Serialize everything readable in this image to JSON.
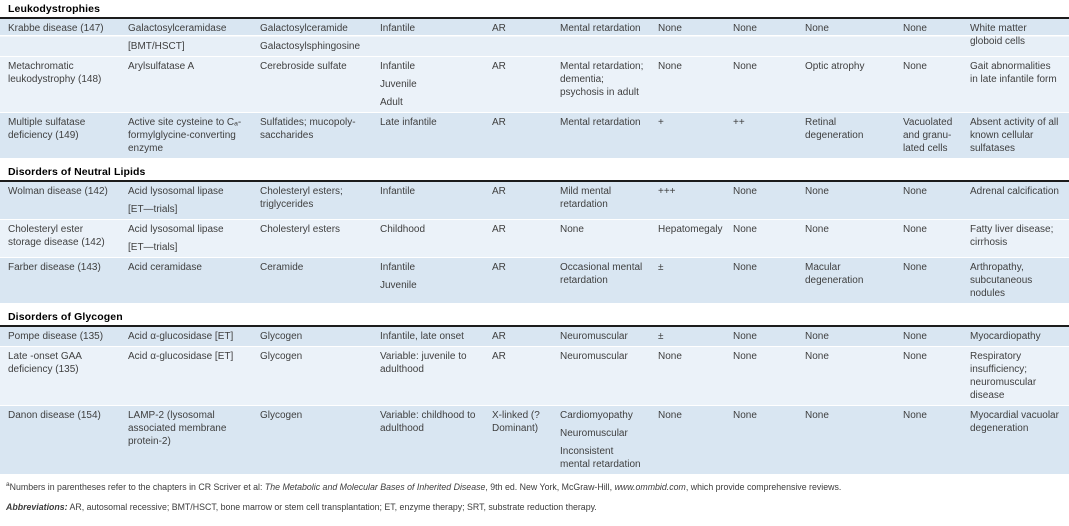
{
  "colors": {
    "row_dark": "#d9e6f2",
    "row_light": "#ebf2f9",
    "row_split_lower": "#e7eff7",
    "section_rule": "#1c1c1c",
    "body_text": "#3f3f3f",
    "header_text": "#000000"
  },
  "table": {
    "sections": [
      {
        "title": "Leukodystrophies",
        "rows": [
          {
            "cells": [
              [
                "Krabbe disease (147)"
              ],
              [
                "Galactosylceramidase",
                "[BMT/HSCT]"
              ],
              [
                "Galactosylceramide",
                "Galactosylsphingosine"
              ],
              [
                "Infantile"
              ],
              [
                "AR"
              ],
              [
                "Mental retardation"
              ],
              [
                "None"
              ],
              [
                "None"
              ],
              [
                "None"
              ],
              [
                "None"
              ],
              [
                "White matter globoid cells"
              ]
            ]
          },
          {
            "cells": [
              [
                "Metachromatic leukodystrophy (148)"
              ],
              [
                "Arylsulfatase A"
              ],
              [
                "Cerebroside sulfate"
              ],
              [
                "Infantile",
                "Juvenile",
                "Adult"
              ],
              [
                "AR"
              ],
              [
                "Mental retardation; dementia; psychosis in adult"
              ],
              [
                "None"
              ],
              [
                "None"
              ],
              [
                "Optic atrophy"
              ],
              [
                "None"
              ],
              [
                "Gait abnormalities in late infantile form"
              ]
            ]
          },
          {
            "cells": [
              [
                "Multiple sulfatase deficiency (149)"
              ],
              [
                "Active site cysteine to Cₐ-formylglycine-converting enzyme"
              ],
              [
                "Sulfatides; mucopoly-saccharides"
              ],
              [
                "Late infantile"
              ],
              [
                "AR"
              ],
              [
                "Mental retardation"
              ],
              [
                "+"
              ],
              [
                "++"
              ],
              [
                "Retinal degeneration"
              ],
              [
                "Vacuolated and granu-lated cells"
              ],
              [
                "Absent activity of all known cellular sulfatases"
              ]
            ]
          }
        ]
      },
      {
        "title": "Disorders of Neutral Lipids",
        "rows": [
          {
            "cells": [
              [
                "Wolman disease (142)"
              ],
              [
                "Acid lysosomal lipase",
                "[ET—trials]"
              ],
              [
                "Cholesteryl esters; triglycerides"
              ],
              [
                "Infantile"
              ],
              [
                "AR"
              ],
              [
                "Mild mental retardation"
              ],
              [
                "+++"
              ],
              [
                "None"
              ],
              [
                "None"
              ],
              [
                "None"
              ],
              [
                "Adrenal calcification"
              ]
            ]
          },
          {
            "cells": [
              [
                "Cholesteryl ester storage disease (142)"
              ],
              [
                "Acid lysosomal lipase",
                "[ET—trials]"
              ],
              [
                "Cholesteryl esters"
              ],
              [
                "Childhood"
              ],
              [
                "AR"
              ],
              [
                "None"
              ],
              [
                "Hepatomegaly"
              ],
              [
                "None"
              ],
              [
                "None"
              ],
              [
                "None"
              ],
              [
                "Fatty liver disease; cirrhosis"
              ]
            ]
          },
          {
            "cells": [
              [
                "Farber disease (143)"
              ],
              [
                "Acid ceramidase"
              ],
              [
                "Ceramide"
              ],
              [
                "Infantile",
                "Juvenile"
              ],
              [
                "AR"
              ],
              [
                "Occasional mental retardation"
              ],
              [
                "±"
              ],
              [
                "None"
              ],
              [
                "Macular degeneration"
              ],
              [
                "None"
              ],
              [
                "Arthropathy, subcutaneous nodules"
              ]
            ]
          }
        ]
      },
      {
        "title": "Disorders of Glycogen",
        "rows": [
          {
            "cells": [
              [
                "Pompe disease (135)"
              ],
              [
                "Acid α-glucosidase [ET]"
              ],
              [
                "Glycogen"
              ],
              [
                "Infantile, late onset"
              ],
              [
                "AR"
              ],
              [
                "Neuromuscular"
              ],
              [
                "±"
              ],
              [
                "None"
              ],
              [
                "None"
              ],
              [
                "None"
              ],
              [
                "Myocardiopathy"
              ]
            ]
          },
          {
            "cells": [
              [
                "Late -onset GAA deficiency (135)"
              ],
              [
                "Acid α-glucosidase [ET]"
              ],
              [
                "Glycogen"
              ],
              [
                "Variable: juvenile to adulthood"
              ],
              [
                "AR"
              ],
              [
                "Neuromuscular"
              ],
              [
                "None"
              ],
              [
                "None"
              ],
              [
                "None"
              ],
              [
                "None"
              ],
              [
                "Respiratory insufficiency; neuromuscular disease"
              ]
            ]
          },
          {
            "cells": [
              [
                "Danon disease (154)"
              ],
              [
                "LAMP-2 (lysosomal associated membrane protein-2)"
              ],
              [
                "Glycogen"
              ],
              [
                "Variable: childhood to adulthood"
              ],
              [
                "X-linked (?Dominant)"
              ],
              [
                "Cardiomyopathy",
                "Neuromuscular",
                "Inconsistent mental retardation"
              ],
              [
                "None"
              ],
              [
                "None"
              ],
              [
                "None"
              ],
              [
                "None"
              ],
              [
                "Myocardial vacuolar degeneration"
              ]
            ]
          }
        ]
      }
    ]
  },
  "footnotes": [
    {
      "parts": [
        {
          "text": "a",
          "style": "sup"
        },
        {
          "text": "Numbers in parentheses refer to the chapters in CR Scriver et al: ",
          "style": "normal"
        },
        {
          "text": "The Metabolic and Molecular Bases of Inherited Disease",
          "style": "italic"
        },
        {
          "text": ", 9th ed. New York, McGraw-Hill, ",
          "style": "normal"
        },
        {
          "text": "www.ommbid.com",
          "style": "italic"
        },
        {
          "text": ", which provide comprehensive reviews.",
          "style": "normal"
        }
      ]
    },
    {
      "parts": [
        {
          "text": "Abbreviations:",
          "style": "bold-italic"
        },
        {
          "text": " AR, autosomal recessive; BMT/HSCT, bone marrow or stem cell transplantation; ET, enzyme therapy; SRT, substrate reduction therapy.",
          "style": "normal"
        }
      ]
    }
  ]
}
